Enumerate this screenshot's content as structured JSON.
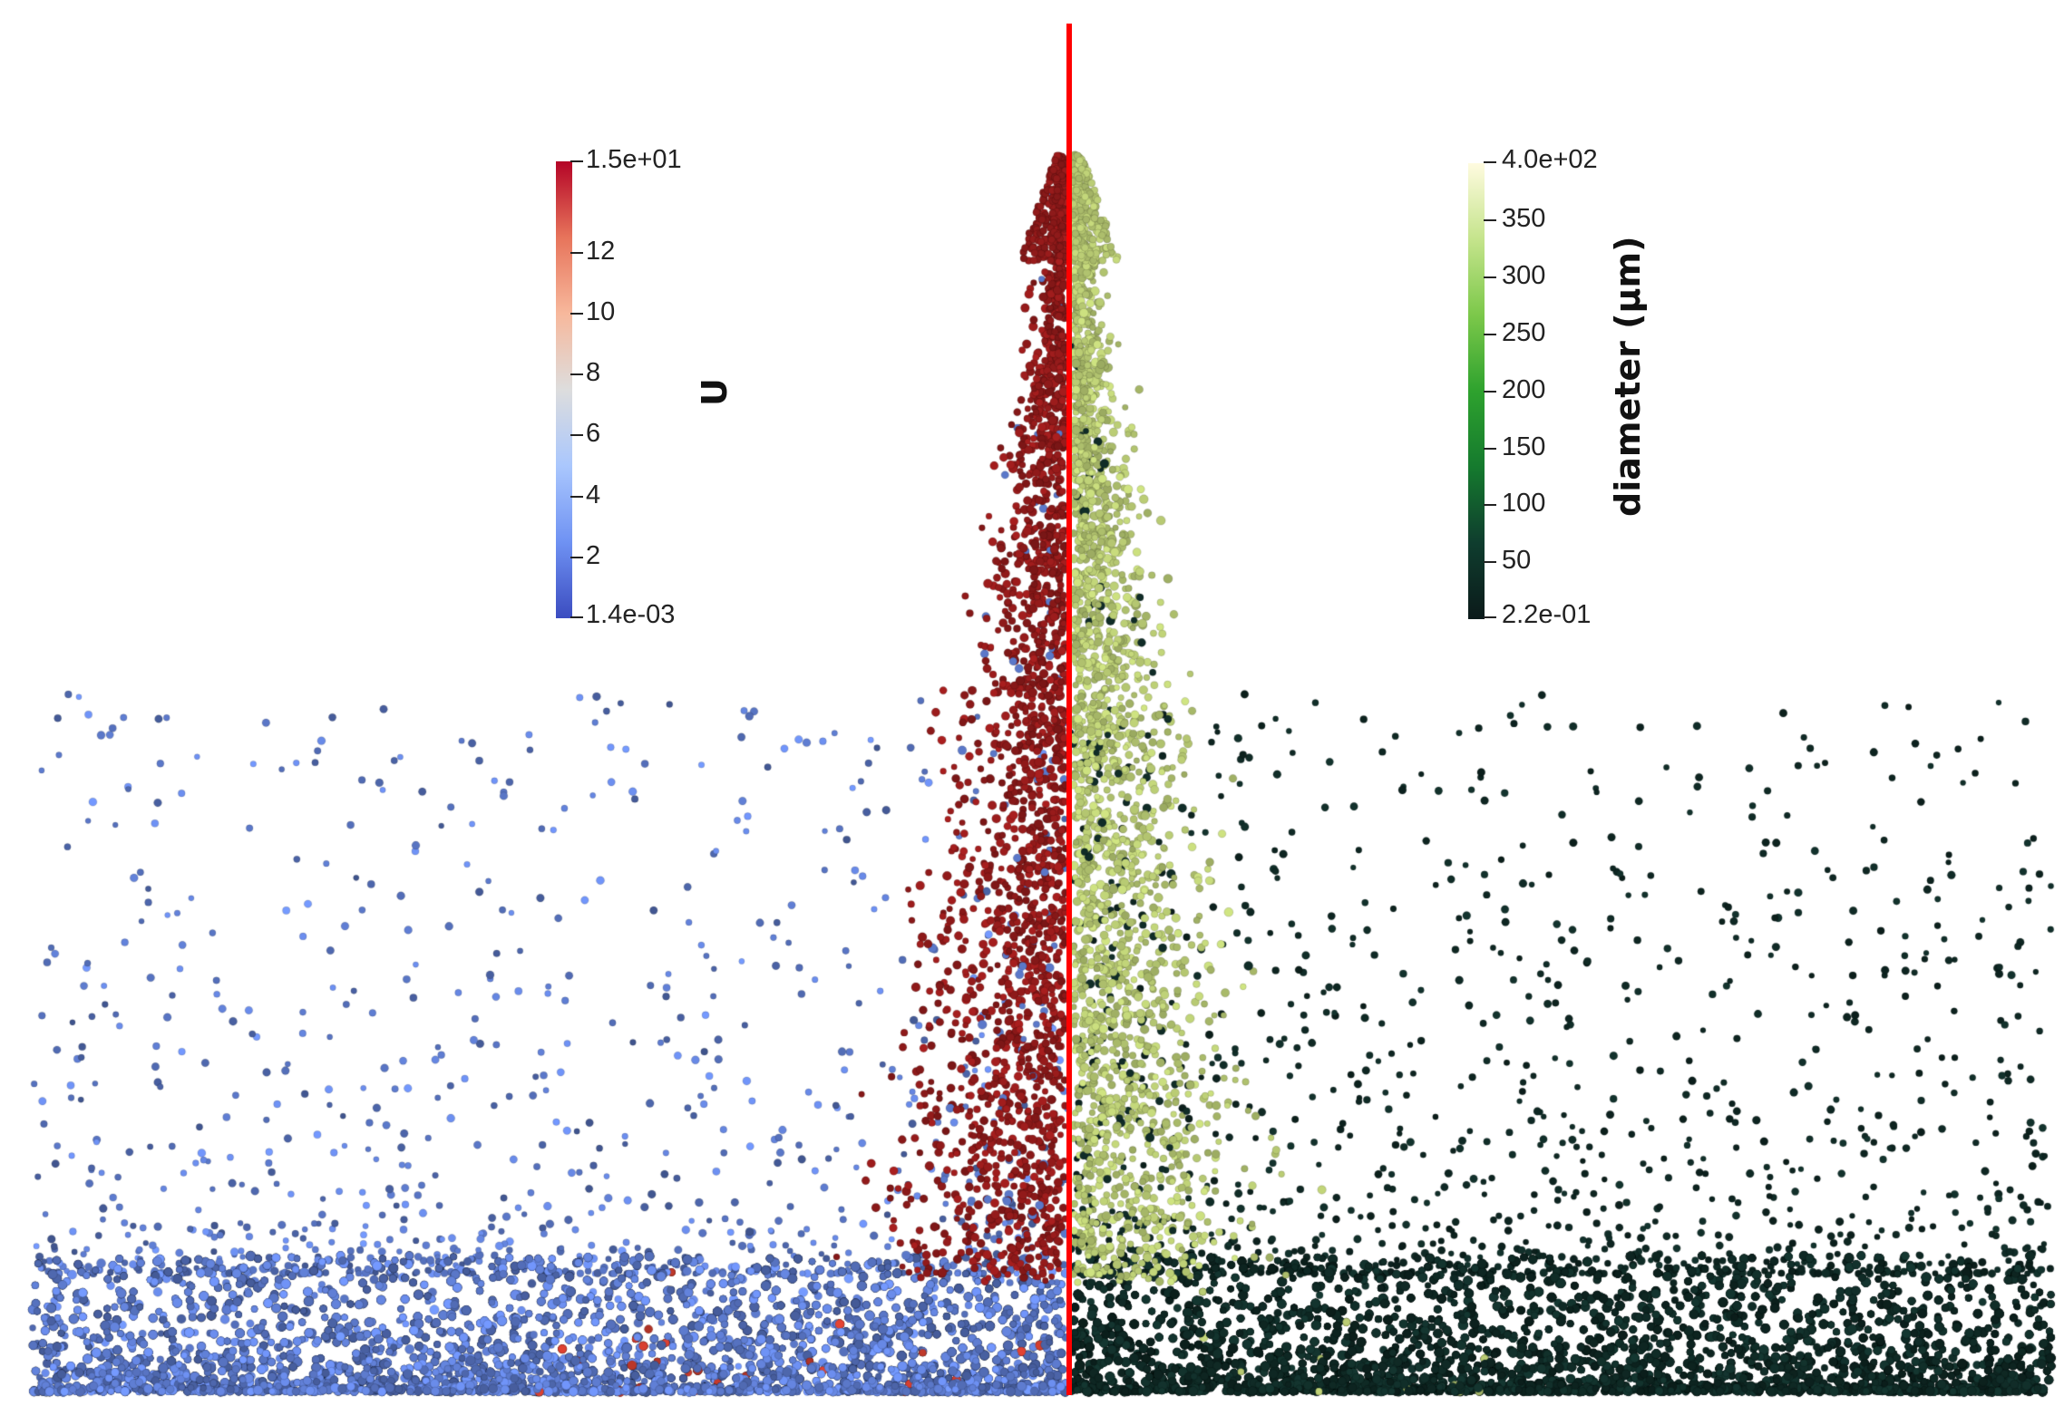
{
  "left_colorbar": {
    "title": "U",
    "max_label": "1.5e+01",
    "min_label": "1.4e-03",
    "ticks": [
      "12",
      "10",
      "8",
      "6",
      "4",
      "2"
    ],
    "tick_values": [
      12,
      10,
      8,
      6,
      4,
      2
    ],
    "min_value": 0.0014,
    "max_value": 15,
    "colors": [
      "#3b4cc0",
      "#6f92f3",
      "#aac7fd",
      "#dddddd",
      "#f7b89c",
      "#e7745b",
      "#b40426"
    ]
  },
  "right_colorbar": {
    "title": "diameter (µm)",
    "max_label": "4.0e+02",
    "min_label": "2.2e-01",
    "ticks": [
      "350",
      "300",
      "250",
      "200",
      "150",
      "100",
      "50"
    ],
    "tick_values": [
      350,
      300,
      250,
      200,
      150,
      100,
      50
    ],
    "min_value": 0.22,
    "max_value": 400,
    "colors": [
      "#0b1a1a",
      "#0f3d2e",
      "#157a2e",
      "#2ea22e",
      "#7cc84a",
      "#c5e48c",
      "#fffbe0"
    ]
  },
  "divider_color": "#ff0000",
  "particle_colors": {
    "slow_blue": "#5b78c9",
    "fast_red": "#8e1a1a",
    "small_dark": "#0e2521",
    "large_green": "#b6c872"
  }
}
